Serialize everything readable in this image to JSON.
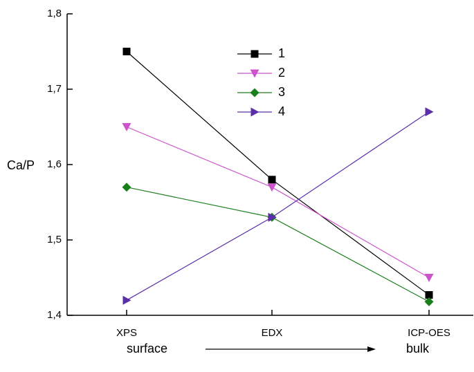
{
  "chart_data": {
    "type": "line",
    "y_label": "Ca/P",
    "categories": [
      "XPS",
      "EDX",
      "ICP-OES"
    ],
    "series": [
      {
        "name": "1",
        "color": "#000000",
        "marker": "square",
        "values": [
          1.75,
          1.58,
          1.427
        ]
      },
      {
        "name": "2",
        "color": "#cc55cc",
        "marker": "triangle-down",
        "values": [
          1.65,
          1.57,
          1.45
        ]
      },
      {
        "name": "3",
        "color": "#1a7f1a",
        "marker": "diamond",
        "values": [
          1.57,
          1.53,
          1.418
        ]
      },
      {
        "name": "4",
        "color": "#5b2fa8",
        "marker": "triangle-right",
        "values": [
          1.42,
          1.53,
          1.67
        ]
      }
    ],
    "ylim": [
      1.4,
      1.8
    ],
    "yticks": [
      {
        "value": 1.4,
        "label": "1,4"
      },
      {
        "value": 1.5,
        "label": "1,5"
      },
      {
        "value": 1.6,
        "label": "1,6"
      },
      {
        "value": 1.7,
        "label": "1,7"
      },
      {
        "value": 1.8,
        "label": "1,8"
      }
    ],
    "annotations": [
      "surface",
      "bulk"
    ],
    "legend": "top-center"
  }
}
